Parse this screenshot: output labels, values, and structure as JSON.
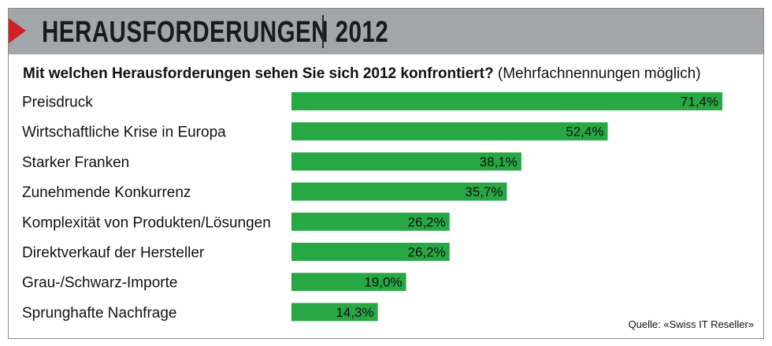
{
  "header": {
    "title": "HERAUSFORDERUNGEN 2012"
  },
  "question": {
    "bold": "Mit welchen Herausforderungen sehen Sie sich 2012 konfrontiert?",
    "normal": "(Mehrfachnennungen möglich)"
  },
  "source": "Quelle: «Swiss IT Reseller»",
  "colors": {
    "bar": "#28a745",
    "header_band": "#a3a6a8",
    "accent": "#d21f26"
  },
  "chart_data": {
    "type": "bar",
    "orientation": "horizontal",
    "categories": [
      "Preisdruck",
      "Wirtschaftliche Krise in Europa",
      "Starker Franken",
      "Zunehmende Konkurrenz",
      "Komplexität von Produkten/Lösungen",
      "Direktverkauf der Hersteller",
      "Grau-/Schwarz-Importe",
      "Sprunghafte Nachfrage"
    ],
    "values": [
      71.4,
      52.4,
      38.1,
      35.7,
      26.2,
      26.2,
      19.0,
      14.3
    ],
    "value_labels": [
      "71,4%",
      "52,4%",
      "38,1%",
      "35,7%",
      "26,2%",
      "26,2%",
      "19,0%",
      "14,3%"
    ],
    "xlim": [
      0,
      71.4
    ],
    "grid": false
  }
}
